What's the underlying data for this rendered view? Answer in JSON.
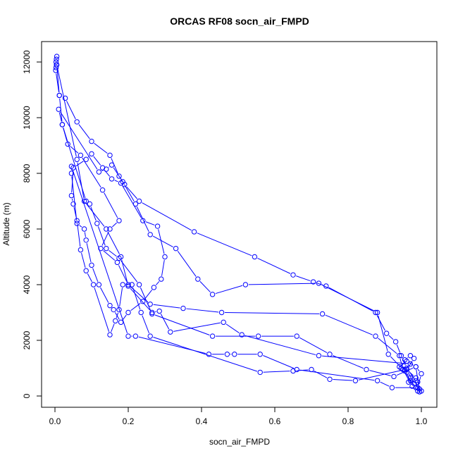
{
  "chart_data": {
    "type": "line",
    "title": "ORCAS RF08 socn_air_FMPD",
    "xlabel": "socn_air_FMPD",
    "ylabel": "Altitude (m)",
    "xlim": [
      0,
      1.0
    ],
    "ylim": [
      0,
      12000
    ],
    "xticks": [
      "0.0",
      "0.2",
      "0.4",
      "0.6",
      "0.8",
      "1.0"
    ],
    "yticks": [
      "0",
      "2000",
      "4000",
      "6000",
      "8000",
      "10000",
      "12000"
    ],
    "grid": false,
    "legend": "none",
    "marker": "open-circle",
    "color": "#0000ff",
    "points": [
      [
        0.005,
        12200
      ],
      [
        0.004,
        12100
      ],
      [
        0.003,
        12000
      ],
      [
        0.004,
        11900
      ],
      [
        0.003,
        11800
      ],
      [
        0.002,
        11700
      ],
      [
        0.012,
        10800
      ],
      [
        0.028,
        10700
      ],
      [
        0.06,
        9850
      ],
      [
        0.1,
        9150
      ],
      [
        0.15,
        8650
      ],
      [
        0.175,
        7900
      ],
      [
        0.19,
        7600
      ],
      [
        0.23,
        7000
      ],
      [
        0.38,
        5900
      ],
      [
        0.545,
        5000
      ],
      [
        0.65,
        4350
      ],
      [
        0.705,
        4100
      ],
      [
        0.74,
        3950
      ],
      [
        0.875,
        3000
      ],
      [
        0.905,
        2250
      ],
      [
        0.93,
        1950
      ],
      [
        0.945,
        1450
      ],
      [
        0.96,
        1000
      ],
      [
        0.985,
        550
      ],
      [
        0.99,
        180
      ],
      [
        0.975,
        350
      ],
      [
        0.95,
        950
      ],
      [
        0.91,
        1500
      ],
      [
        0.88,
        3000
      ],
      [
        0.72,
        4050
      ],
      [
        0.52,
        4000
      ],
      [
        0.43,
        3650
      ],
      [
        0.39,
        4200
      ],
      [
        0.33,
        5300
      ],
      [
        0.26,
        5800
      ],
      [
        0.22,
        6900
      ],
      [
        0.185,
        7700
      ],
      [
        0.155,
        8300
      ],
      [
        0.14,
        8150
      ],
      [
        0.12,
        8050
      ],
      [
        0.01,
        10300
      ],
      [
        0.02,
        9750
      ],
      [
        0.035,
        9050
      ],
      [
        0.07,
        8650
      ],
      [
        0.13,
        7400
      ],
      [
        0.175,
        6300
      ],
      [
        0.15,
        6000
      ],
      [
        0.125,
        5300
      ],
      [
        0.17,
        4800
      ],
      [
        0.2,
        4000
      ],
      [
        0.26,
        3300
      ],
      [
        0.35,
        3150
      ],
      [
        0.455,
        3000
      ],
      [
        0.73,
        2950
      ],
      [
        0.875,
        2150
      ],
      [
        0.94,
        1450
      ],
      [
        0.95,
        950
      ],
      [
        0.985,
        300
      ],
      [
        1.0,
        180
      ],
      [
        0.995,
        150
      ],
      [
        0.985,
        1050
      ],
      [
        0.925,
        700
      ],
      [
        0.85,
        950
      ],
      [
        0.75,
        1500
      ],
      [
        0.66,
        2150
      ],
      [
        0.555,
        2150
      ],
      [
        0.43,
        2150
      ],
      [
        0.265,
        2950
      ],
      [
        0.23,
        4000
      ],
      [
        0.175,
        4950
      ],
      [
        0.14,
        5300
      ],
      [
        0.115,
        6200
      ],
      [
        0.095,
        6900
      ],
      [
        0.085,
        7000
      ],
      [
        0.02,
        9750
      ],
      [
        0.012,
        10800
      ],
      [
        0.005,
        11900
      ],
      [
        0.06,
        8500
      ],
      [
        0.08,
        7000
      ],
      [
        0.14,
        6000
      ],
      [
        0.18,
        5000
      ],
      [
        0.2,
        3950
      ],
      [
        0.265,
        3000
      ],
      [
        0.285,
        3050
      ],
      [
        0.315,
        2300
      ],
      [
        0.46,
        2650
      ],
      [
        0.51,
        2200
      ],
      [
        0.72,
        1450
      ],
      [
        0.97,
        1150
      ],
      [
        0.955,
        950
      ],
      [
        0.82,
        550
      ],
      [
        0.75,
        600
      ],
      [
        0.7,
        950
      ],
      [
        0.65,
        900
      ],
      [
        0.56,
        850
      ],
      [
        0.26,
        2150
      ],
      [
        0.235,
        3000
      ],
      [
        0.21,
        4000
      ],
      [
        0.185,
        4000
      ],
      [
        0.175,
        3100
      ],
      [
        0.165,
        2700
      ],
      [
        0.15,
        2200
      ],
      [
        0.105,
        4000
      ],
      [
        0.085,
        4500
      ],
      [
        0.07,
        5250
      ],
      [
        0.06,
        6300
      ],
      [
        0.05,
        6900
      ],
      [
        0.045,
        7200
      ],
      [
        0.05,
        8200
      ],
      [
        0.085,
        8500
      ],
      [
        0.1,
        8700
      ],
      [
        0.13,
        8200
      ],
      [
        0.155,
        7800
      ],
      [
        0.18,
        7650
      ],
      [
        0.24,
        6300
      ],
      [
        0.28,
        6100
      ],
      [
        0.3,
        5000
      ],
      [
        0.29,
        4200
      ],
      [
        0.27,
        3900
      ],
      [
        0.24,
        3400
      ],
      [
        0.2,
        3000
      ],
      [
        0.18,
        2650
      ],
      [
        0.16,
        3100
      ],
      [
        0.15,
        3250
      ],
      [
        0.12,
        4000
      ],
      [
        0.1,
        4700
      ],
      [
        0.085,
        5600
      ],
      [
        0.08,
        6000
      ],
      [
        0.06,
        6200
      ],
      [
        0.045,
        8000
      ],
      [
        0.045,
        8250
      ],
      [
        0.2,
        2150
      ],
      [
        0.22,
        2150
      ],
      [
        0.42,
        1500
      ],
      [
        0.47,
        1500
      ],
      [
        0.49,
        1500
      ],
      [
        0.56,
        1500
      ],
      [
        0.66,
        950
      ],
      [
        0.88,
        550
      ],
      [
        0.92,
        300
      ],
      [
        0.99,
        300
      ],
      [
        1.0,
        800
      ],
      [
        0.985,
        1050
      ],
      [
        0.96,
        1250
      ],
      [
        0.94,
        1050
      ],
      [
        0.96,
        950
      ],
      [
        0.985,
        650
      ],
      [
        0.97,
        550
      ],
      [
        0.98,
        450
      ],
      [
        0.96,
        950
      ],
      [
        0.98,
        1350
      ],
      [
        0.97,
        1450
      ],
      [
        0.955,
        1300
      ],
      [
        0.945,
        1000
      ],
      [
        0.955,
        900
      ],
      [
        0.97,
        650
      ],
      [
        0.965,
        500
      ],
      [
        0.99,
        500
      ],
      [
        0.995,
        250
      ]
    ]
  }
}
